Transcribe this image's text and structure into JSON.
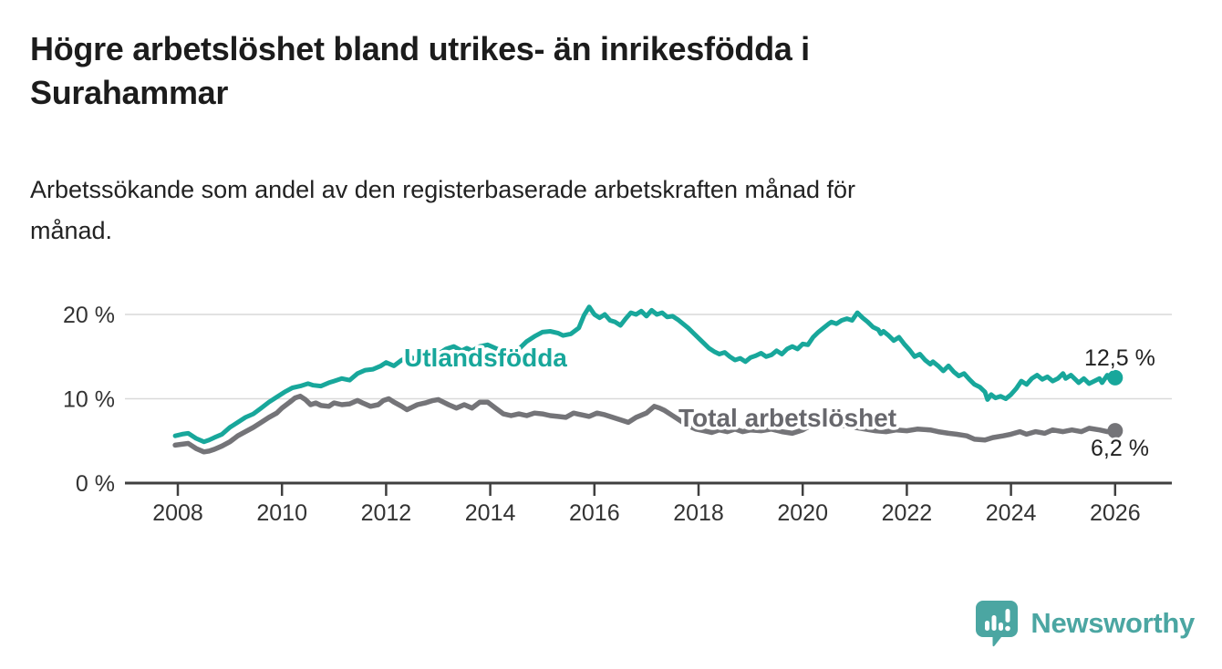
{
  "header": {
    "title": "Högre arbetslöshet bland utrikes- än inrikesfödda i\nSurahammar",
    "subtitle": "Arbetssökande som andel av den registerbaserade arbetskraften månad för\nmånad."
  },
  "chart_data": {
    "type": "line",
    "title": "Högre arbetslöshet bland utrikes- än inrikesfödda i Surahammar",
    "subtitle": "Arbetssökande som andel av den registerbaserade arbetskraften månad för månad.",
    "xlabel": "",
    "ylabel": "",
    "x_unit": "decimal_year",
    "xlim": [
      2007.9,
      2027.1
    ],
    "ylim": [
      0,
      22.5
    ],
    "grid": "horizontal-at-10-and-20",
    "x_ticks": [
      2008,
      2010,
      2012,
      2014,
      2016,
      2018,
      2020,
      2022,
      2024,
      2026
    ],
    "x_tick_labels": [
      "2008",
      "2010",
      "2012",
      "2014",
      "2016",
      "2018",
      "2020",
      "2022",
      "2024",
      "2026"
    ],
    "y_ticks": [
      0,
      10,
      20
    ],
    "y_tick_labels": [
      "0 %",
      "10 %",
      "20 %"
    ],
    "legend_position": "inline-labels-on-lines",
    "series": [
      {
        "name": "Utlandsfödda",
        "color": "#18a79b",
        "end_value": 12.5,
        "end_label": "12,5 %",
        "points": [
          [
            2007.95,
            5.6
          ],
          [
            2008.08,
            5.8
          ],
          [
            2008.2,
            5.9
          ],
          [
            2008.35,
            5.3
          ],
          [
            2008.5,
            4.9
          ],
          [
            2008.6,
            5.1
          ],
          [
            2008.7,
            5.4
          ],
          [
            2008.85,
            5.8
          ],
          [
            2009.0,
            6.6
          ],
          [
            2009.15,
            7.2
          ],
          [
            2009.3,
            7.8
          ],
          [
            2009.45,
            8.2
          ],
          [
            2009.6,
            8.9
          ],
          [
            2009.75,
            9.6
          ],
          [
            2009.9,
            10.2
          ],
          [
            2010.05,
            10.8
          ],
          [
            2010.2,
            11.3
          ],
          [
            2010.35,
            11.5
          ],
          [
            2010.5,
            11.8
          ],
          [
            2010.6,
            11.6
          ],
          [
            2010.75,
            11.5
          ],
          [
            2010.9,
            11.9
          ],
          [
            2011.0,
            12.1
          ],
          [
            2011.15,
            12.4
          ],
          [
            2011.3,
            12.2
          ],
          [
            2011.45,
            13.0
          ],
          [
            2011.6,
            13.4
          ],
          [
            2011.75,
            13.5
          ],
          [
            2011.9,
            13.9
          ],
          [
            2012.0,
            14.3
          ],
          [
            2012.15,
            13.9
          ],
          [
            2012.3,
            14.6
          ],
          [
            2012.45,
            15.0
          ],
          [
            2012.6,
            14.6
          ],
          [
            2012.8,
            15.0
          ],
          [
            2013.0,
            15.3
          ],
          [
            2013.15,
            15.9
          ],
          [
            2013.3,
            16.2
          ],
          [
            2013.45,
            15.7
          ],
          [
            2013.55,
            16.0
          ],
          [
            2013.65,
            15.7
          ],
          [
            2013.8,
            16.2
          ],
          [
            2013.95,
            16.4
          ],
          [
            2014.1,
            16.0
          ],
          [
            2014.25,
            15.6
          ],
          [
            2014.4,
            15.5
          ],
          [
            2014.55,
            15.9
          ],
          [
            2014.7,
            16.8
          ],
          [
            2014.85,
            17.4
          ],
          [
            2015.0,
            17.9
          ],
          [
            2015.15,
            18.0
          ],
          [
            2015.3,
            17.8
          ],
          [
            2015.4,
            17.5
          ],
          [
            2015.55,
            17.7
          ],
          [
            2015.7,
            18.4
          ],
          [
            2015.8,
            19.9
          ],
          [
            2015.9,
            20.9
          ],
          [
            2016.0,
            20.0
          ],
          [
            2016.1,
            19.6
          ],
          [
            2016.2,
            20.0
          ],
          [
            2016.3,
            19.3
          ],
          [
            2016.4,
            19.1
          ],
          [
            2016.5,
            18.7
          ],
          [
            2016.6,
            19.5
          ],
          [
            2016.7,
            20.2
          ],
          [
            2016.8,
            20.0
          ],
          [
            2016.9,
            20.4
          ],
          [
            2017.0,
            19.8
          ],
          [
            2017.1,
            20.5
          ],
          [
            2017.2,
            20.0
          ],
          [
            2017.3,
            20.2
          ],
          [
            2017.4,
            19.7
          ],
          [
            2017.5,
            19.8
          ],
          [
            2017.6,
            19.4
          ],
          [
            2017.7,
            18.9
          ],
          [
            2017.8,
            18.4
          ],
          [
            2017.9,
            17.8
          ],
          [
            2018.0,
            17.2
          ],
          [
            2018.1,
            16.6
          ],
          [
            2018.2,
            16.0
          ],
          [
            2018.3,
            15.6
          ],
          [
            2018.4,
            15.3
          ],
          [
            2018.5,
            15.5
          ],
          [
            2018.6,
            15.0
          ],
          [
            2018.7,
            14.6
          ],
          [
            2018.8,
            14.8
          ],
          [
            2018.9,
            14.4
          ],
          [
            2019.0,
            14.9
          ],
          [
            2019.1,
            15.1
          ],
          [
            2019.2,
            15.4
          ],
          [
            2019.3,
            15.0
          ],
          [
            2019.4,
            15.2
          ],
          [
            2019.5,
            15.7
          ],
          [
            2019.6,
            15.3
          ],
          [
            2019.7,
            15.9
          ],
          [
            2019.8,
            16.2
          ],
          [
            2019.9,
            15.9
          ],
          [
            2020.0,
            16.5
          ],
          [
            2020.1,
            16.4
          ],
          [
            2020.2,
            17.3
          ],
          [
            2020.3,
            17.9
          ],
          [
            2020.4,
            18.4
          ],
          [
            2020.5,
            18.9
          ],
          [
            2020.55,
            19.1
          ],
          [
            2020.65,
            18.9
          ],
          [
            2020.75,
            19.3
          ],
          [
            2020.85,
            19.5
          ],
          [
            2020.95,
            19.3
          ],
          [
            2021.05,
            20.2
          ],
          [
            2021.15,
            19.6
          ],
          [
            2021.25,
            19.1
          ],
          [
            2021.35,
            18.5
          ],
          [
            2021.45,
            18.2
          ],
          [
            2021.5,
            17.7
          ],
          [
            2021.55,
            18.0
          ],
          [
            2021.65,
            17.5
          ],
          [
            2021.75,
            16.9
          ],
          [
            2021.85,
            17.3
          ],
          [
            2021.95,
            16.5
          ],
          [
            2022.05,
            15.8
          ],
          [
            2022.15,
            15.0
          ],
          [
            2022.25,
            15.3
          ],
          [
            2022.35,
            14.6
          ],
          [
            2022.45,
            14.1
          ],
          [
            2022.5,
            14.4
          ],
          [
            2022.6,
            13.9
          ],
          [
            2022.7,
            13.3
          ],
          [
            2022.8,
            13.9
          ],
          [
            2022.9,
            13.2
          ],
          [
            2023.0,
            12.7
          ],
          [
            2023.1,
            13.0
          ],
          [
            2023.2,
            12.3
          ],
          [
            2023.3,
            11.7
          ],
          [
            2023.4,
            11.4
          ],
          [
            2023.5,
            10.8
          ],
          [
            2023.55,
            9.9
          ],
          [
            2023.62,
            10.5
          ],
          [
            2023.7,
            10.1
          ],
          [
            2023.8,
            10.3
          ],
          [
            2023.9,
            10.0
          ],
          [
            2024.0,
            10.5
          ],
          [
            2024.1,
            11.2
          ],
          [
            2024.2,
            12.1
          ],
          [
            2024.3,
            11.7
          ],
          [
            2024.4,
            12.4
          ],
          [
            2024.5,
            12.8
          ],
          [
            2024.6,
            12.3
          ],
          [
            2024.7,
            12.6
          ],
          [
            2024.8,
            12.1
          ],
          [
            2024.9,
            12.4
          ],
          [
            2025.0,
            13.0
          ],
          [
            2025.05,
            12.4
          ],
          [
            2025.15,
            12.8
          ],
          [
            2025.25,
            12.2
          ],
          [
            2025.3,
            11.9
          ],
          [
            2025.4,
            12.4
          ],
          [
            2025.5,
            11.8
          ],
          [
            2025.6,
            12.1
          ],
          [
            2025.7,
            12.4
          ],
          [
            2025.75,
            11.9
          ],
          [
            2025.85,
            12.8
          ],
          [
            2025.92,
            12.1
          ],
          [
            2026.0,
            12.5
          ]
        ]
      },
      {
        "name": "Total arbetslöshet",
        "color": "#747478",
        "end_value": 6.2,
        "end_label": "6,2 %",
        "points": [
          [
            2007.95,
            4.5
          ],
          [
            2008.08,
            4.6
          ],
          [
            2008.2,
            4.7
          ],
          [
            2008.35,
            4.1
          ],
          [
            2008.5,
            3.7
          ],
          [
            2008.6,
            3.8
          ],
          [
            2008.7,
            4.0
          ],
          [
            2008.85,
            4.4
          ],
          [
            2009.0,
            4.9
          ],
          [
            2009.15,
            5.6
          ],
          [
            2009.3,
            6.1
          ],
          [
            2009.45,
            6.6
          ],
          [
            2009.6,
            7.2
          ],
          [
            2009.75,
            7.8
          ],
          [
            2009.9,
            8.3
          ],
          [
            2010.0,
            8.9
          ],
          [
            2010.15,
            9.6
          ],
          [
            2010.25,
            10.1
          ],
          [
            2010.35,
            10.3
          ],
          [
            2010.45,
            9.9
          ],
          [
            2010.55,
            9.3
          ],
          [
            2010.65,
            9.5
          ],
          [
            2010.75,
            9.2
          ],
          [
            2010.9,
            9.1
          ],
          [
            2011.0,
            9.5
          ],
          [
            2011.15,
            9.3
          ],
          [
            2011.3,
            9.4
          ],
          [
            2011.45,
            9.8
          ],
          [
            2011.55,
            9.5
          ],
          [
            2011.7,
            9.1
          ],
          [
            2011.85,
            9.3
          ],
          [
            2011.95,
            9.8
          ],
          [
            2012.05,
            10.0
          ],
          [
            2012.15,
            9.6
          ],
          [
            2012.3,
            9.1
          ],
          [
            2012.4,
            8.7
          ],
          [
            2012.5,
            9.0
          ],
          [
            2012.6,
            9.3
          ],
          [
            2012.75,
            9.5
          ],
          [
            2012.9,
            9.8
          ],
          [
            2013.0,
            9.9
          ],
          [
            2013.1,
            9.6
          ],
          [
            2013.2,
            9.3
          ],
          [
            2013.35,
            8.9
          ],
          [
            2013.5,
            9.3
          ],
          [
            2013.65,
            8.9
          ],
          [
            2013.8,
            9.6
          ],
          [
            2013.95,
            9.6
          ],
          [
            2014.1,
            8.9
          ],
          [
            2014.25,
            8.2
          ],
          [
            2014.4,
            8.0
          ],
          [
            2014.55,
            8.2
          ],
          [
            2014.7,
            8.0
          ],
          [
            2014.85,
            8.3
          ],
          [
            2015.0,
            8.2
          ],
          [
            2015.15,
            8.0
          ],
          [
            2015.3,
            7.9
          ],
          [
            2015.45,
            7.8
          ],
          [
            2015.6,
            8.3
          ],
          [
            2015.75,
            8.1
          ],
          [
            2015.9,
            7.9
          ],
          [
            2016.05,
            8.3
          ],
          [
            2016.2,
            8.1
          ],
          [
            2016.35,
            7.8
          ],
          [
            2016.5,
            7.5
          ],
          [
            2016.65,
            7.2
          ],
          [
            2016.8,
            7.8
          ],
          [
            2017.0,
            8.3
          ],
          [
            2017.15,
            9.1
          ],
          [
            2017.25,
            8.9
          ],
          [
            2017.35,
            8.6
          ],
          [
            2017.5,
            8.0
          ],
          [
            2017.6,
            7.6
          ],
          [
            2017.7,
            7.2
          ],
          [
            2017.8,
            6.8
          ],
          [
            2017.95,
            6.4
          ],
          [
            2018.1,
            6.2
          ],
          [
            2018.25,
            6.0
          ],
          [
            2018.4,
            6.3
          ],
          [
            2018.55,
            6.1
          ],
          [
            2018.7,
            6.4
          ],
          [
            2018.85,
            6.1
          ],
          [
            2019.0,
            6.3
          ],
          [
            2019.2,
            6.2
          ],
          [
            2019.4,
            6.4
          ],
          [
            2019.6,
            6.1
          ],
          [
            2019.8,
            5.9
          ],
          [
            2020.0,
            6.3
          ],
          [
            2020.2,
            7.0
          ],
          [
            2020.4,
            7.3
          ],
          [
            2020.6,
            7.1
          ],
          [
            2020.8,
            6.8
          ],
          [
            2021.0,
            6.6
          ],
          [
            2021.2,
            6.4
          ],
          [
            2021.4,
            6.2
          ],
          [
            2021.6,
            6.1
          ],
          [
            2021.8,
            6.3
          ],
          [
            2022.0,
            6.2
          ],
          [
            2022.2,
            6.4
          ],
          [
            2022.45,
            6.3
          ],
          [
            2022.6,
            6.1
          ],
          [
            2022.8,
            5.9
          ],
          [
            2022.95,
            5.8
          ],
          [
            2023.15,
            5.6
          ],
          [
            2023.3,
            5.2
          ],
          [
            2023.5,
            5.1
          ],
          [
            2023.65,
            5.4
          ],
          [
            2023.85,
            5.6
          ],
          [
            2024.0,
            5.8
          ],
          [
            2024.17,
            6.1
          ],
          [
            2024.3,
            5.8
          ],
          [
            2024.47,
            6.1
          ],
          [
            2024.65,
            5.9
          ],
          [
            2024.8,
            6.3
          ],
          [
            2025.0,
            6.1
          ],
          [
            2025.17,
            6.3
          ],
          [
            2025.35,
            6.1
          ],
          [
            2025.5,
            6.5
          ],
          [
            2025.7,
            6.3
          ],
          [
            2025.85,
            6.1
          ],
          [
            2026.0,
            6.2
          ]
        ]
      }
    ]
  },
  "colors": {
    "accent_teal": "#18a79b",
    "series_gray": "#747478",
    "grid": "#d9d9d9",
    "axis": "#3f3f3f",
    "text_dark": "#1c1c1c",
    "brand_teal": "#4ba6a2"
  },
  "footer": {
    "brand": "Newsworthy"
  }
}
